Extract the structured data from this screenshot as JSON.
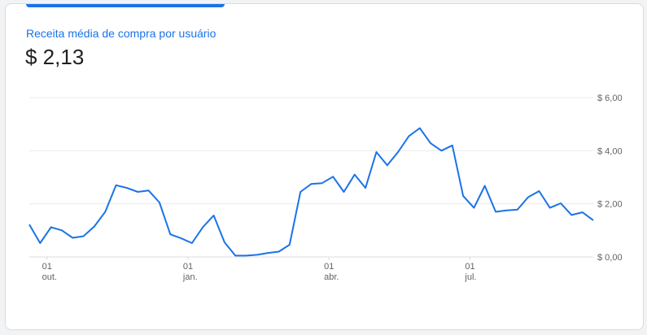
{
  "metric": {
    "label": "Receita média de compra por usuário",
    "value": "$ 2,13"
  },
  "colors": {
    "accent": "#1a73e8",
    "line": "#1a73e8",
    "grid": "#e8eaed",
    "baseline": "#dadce0",
    "text": "#202124",
    "axis_text": "#5f6368"
  },
  "chart_data": {
    "type": "line",
    "title": "",
    "xlabel": "",
    "ylabel": "",
    "ylim": [
      0,
      6
    ],
    "yticks": [
      {
        "value": 0,
        "label": "$ 0,00"
      },
      {
        "value": 2,
        "label": "$ 2,00"
      },
      {
        "value": 4,
        "label": "$ 4,00"
      },
      {
        "value": 6,
        "label": "$ 6,00"
      }
    ],
    "xticks": [
      {
        "index": 2,
        "day": "01",
        "month": "out."
      },
      {
        "index": 15,
        "day": "01",
        "month": "jan."
      },
      {
        "index": 28,
        "day": "01",
        "month": "abr."
      },
      {
        "index": 41,
        "day": "01",
        "month": "jul."
      }
    ],
    "grid": true,
    "legend": "none",
    "values": [
      1.22,
      0.52,
      1.12,
      1.0,
      0.72,
      0.78,
      1.15,
      1.7,
      2.7,
      2.6,
      2.45,
      2.5,
      2.05,
      0.85,
      0.7,
      0.52,
      1.12,
      1.56,
      0.55,
      0.05,
      0.05,
      0.08,
      0.15,
      0.2,
      0.46,
      2.45,
      2.75,
      2.78,
      3.02,
      2.45,
      3.1,
      2.6,
      3.95,
      3.45,
      3.95,
      4.55,
      4.85,
      4.28,
      4.0,
      4.2,
      2.3,
      1.85,
      2.68,
      1.7,
      1.75,
      1.78,
      2.25,
      2.48,
      1.85,
      2.02,
      1.58,
      1.68,
      1.38
    ]
  }
}
